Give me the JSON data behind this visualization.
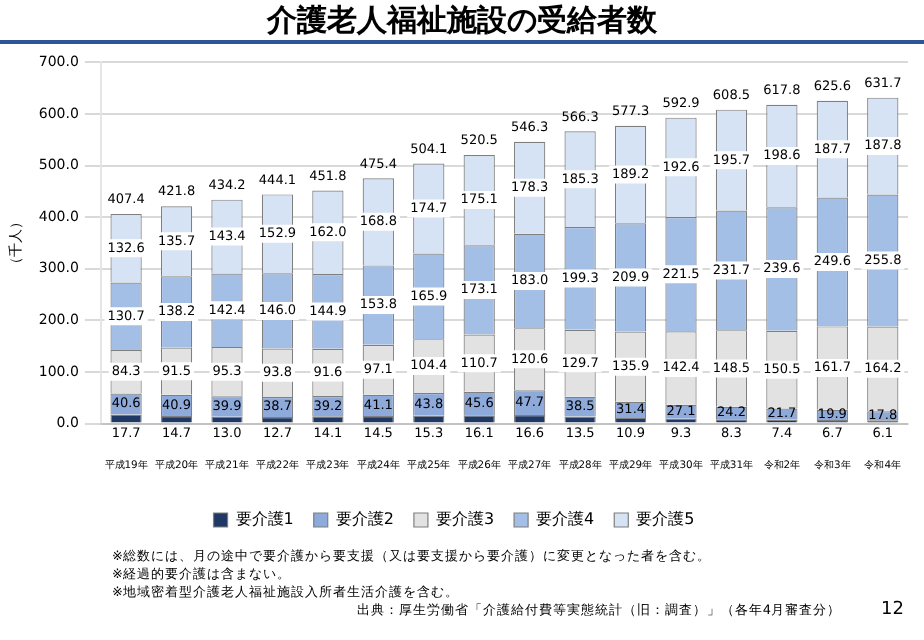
{
  "chart_data": {
    "type": "bar",
    "stacked": true,
    "title": "介護老人福祉施設の受給者数",
    "ylabel": "（千人）",
    "categories": [
      "平成19年",
      "平成20年",
      "平成21年",
      "平成22年",
      "平成23年",
      "平成24年",
      "平成25年",
      "平成26年",
      "平成27年",
      "平成28年",
      "平成29年",
      "平成30年",
      "平成31年",
      "令和2年",
      "令和3年",
      "令和4年"
    ],
    "series": [
      {
        "name": "要介護1",
        "color": "#1f3864",
        "values": [
          17.7,
          14.7,
          13.0,
          12.7,
          14.1,
          14.5,
          15.3,
          16.1,
          16.6,
          13.5,
          10.9,
          9.3,
          8.3,
          7.4,
          6.7,
          6.1
        ],
        "value_labels": [
          "17.7",
          "14.7",
          "13.0",
          "12.7",
          "14.1",
          "14.5",
          "15.3",
          "16.1",
          "16.6",
          "13.5",
          "10.9",
          "9.3",
          "8.3",
          "7.4",
          "6.7",
          "6.1"
        ]
      },
      {
        "name": "要介護2",
        "color": "#8eaadb",
        "values": [
          40.6,
          40.9,
          39.9,
          38.7,
          39.2,
          41.1,
          43.8,
          45.6,
          47.7,
          38.5,
          31.4,
          27.1,
          24.2,
          21.7,
          19.9,
          17.8
        ],
        "value_labels": [
          "40.6",
          "40.9",
          "39.9",
          "38.7",
          "39.2",
          "41.1",
          "43.8",
          "45.6",
          "47.7",
          "38.5",
          "31.4",
          "27.1",
          "24.2",
          "21.7",
          "19.9",
          "17.8"
        ]
      },
      {
        "name": "要介護3",
        "color": "#e2e2e2",
        "values": [
          84.3,
          91.5,
          95.3,
          93.8,
          91.6,
          97.1,
          104.4,
          110.7,
          120.6,
          129.7,
          135.9,
          142.4,
          148.5,
          150.5,
          161.7,
          164.2
        ],
        "value_labels": [
          "84.3",
          "91.5",
          "95.3",
          "93.8",
          "91.6",
          "97.1",
          "104.4",
          "110.7",
          "120.6",
          "129.7",
          "135.9",
          "142.4",
          "148.5",
          "150.5",
          "161.7",
          "164.2"
        ]
      },
      {
        "name": "要介護4",
        "color": "#a4bfe6",
        "values": [
          130.7,
          138.2,
          142.4,
          146.0,
          144.9,
          153.8,
          165.9,
          173.1,
          183.0,
          199.3,
          209.9,
          221.5,
          231.7,
          239.6,
          249.6,
          255.8
        ],
        "value_labels": [
          "130.7",
          "138.2",
          "142.4",
          "146.0",
          "144.9",
          "153.8",
          "165.9",
          "173.1",
          "183.0",
          "199.3",
          "209.9",
          "221.5",
          "231.7",
          "239.6",
          "249.6",
          "255.8"
        ]
      },
      {
        "name": "要介護5",
        "color": "#d6e3f5",
        "values": [
          132.6,
          135.7,
          143.4,
          152.9,
          162.0,
          168.8,
          174.7,
          175.1,
          178.3,
          185.3,
          189.2,
          192.6,
          195.7,
          198.6,
          187.7,
          187.8
        ],
        "value_labels": [
          "132.6",
          "135.7",
          "143.4",
          "152.9",
          "162.0",
          "168.8",
          "174.7",
          "175.1",
          "178.3",
          "185.3",
          "189.2",
          "192.6",
          "195.7",
          "198.6",
          "187.7",
          "187.8"
        ]
      }
    ],
    "ylim": [
      0,
      700
    ],
    "yticks": [
      {
        "value": 0,
        "label": "0.0"
      },
      {
        "value": 100,
        "label": "100.0"
      },
      {
        "value": 200,
        "label": "200.0"
      },
      {
        "value": 300,
        "label": "300.0"
      },
      {
        "value": 400,
        "label": "400.0"
      },
      {
        "value": 500,
        "label": "500.0"
      },
      {
        "value": 600,
        "label": "600.0"
      },
      {
        "value": 700,
        "label": "700.0"
      }
    ],
    "grid": "y",
    "legend": "bottom",
    "annotations": [
      {
        "text": "407.4",
        "x": "平成19年",
        "y": 407.4
      },
      {
        "text": "421.8",
        "x": "平成20年",
        "y": 421.8
      },
      {
        "text": "434.2",
        "x": "平成21年",
        "y": 434.2
      },
      {
        "text": "444.1",
        "x": "平成22年",
        "y": 444.1
      },
      {
        "text": "451.8",
        "x": "平成23年",
        "y": 451.8
      },
      {
        "text": "475.4",
        "x": "平成24年",
        "y": 475.4
      },
      {
        "text": "504.1",
        "x": "平成25年",
        "y": 504.1
      },
      {
        "text": "520.5",
        "x": "平成26年",
        "y": 520.5
      },
      {
        "text": "546.3",
        "x": "平成27年",
        "y": 546.3
      },
      {
        "text": "566.3",
        "x": "平成28年",
        "y": 566.3
      },
      {
        "text": "577.3",
        "x": "平成29年",
        "y": 577.3
      },
      {
        "text": "592.9",
        "x": "平成30年",
        "y": 592.9
      },
      {
        "text": "608.5",
        "x": "平成31年",
        "y": 608.5
      },
      {
        "text": "617.8",
        "x": "令和2年",
        "y": 617.8
      },
      {
        "text": "625.6",
        "x": "令和3年",
        "y": 625.6
      },
      {
        "text": "631.7",
        "x": "令和4年",
        "y": 631.7
      },
      "※総数には、月の途中で要介護から要支援（又は要支援から要介護）に変更となった者を含む。",
      "※経過的要介護は含まない。",
      "※地域密着型介護老人福祉施設入所者生活介護を含む。",
      "出典：厚生労働省「介護給付費等実態統計（旧：調査）」（各年4月審査分）",
      "12"
    ]
  }
}
